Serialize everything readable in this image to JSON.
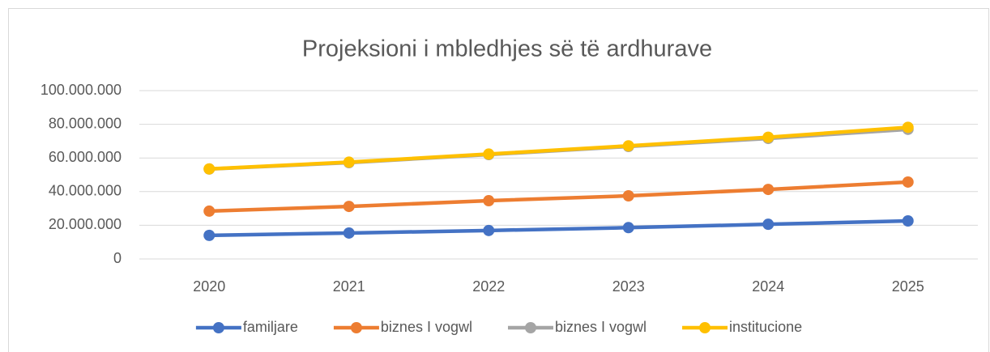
{
  "chart_data": {
    "type": "line",
    "title": "Projeksioni i mbledhjes së të ardhurave",
    "categories": [
      "2020",
      "2021",
      "2022",
      "2023",
      "2024",
      "2025"
    ],
    "series": [
      {
        "name": "familjare",
        "color": "#4472c4",
        "values": [
          14000000,
          15400000,
          16900000,
          18600000,
          20600000,
          22600000
        ]
      },
      {
        "name": "biznes I vogwl",
        "color": "#ed7d31",
        "values": [
          28400000,
          31200000,
          34600000,
          37500000,
          41300000,
          45700000
        ]
      },
      {
        "name": "biznes I vogwl",
        "color": "#a5a5a5",
        "values": [
          53400000,
          57200000,
          62000000,
          66800000,
          71600000,
          77000000
        ]
      },
      {
        "name": "institucione",
        "color": "#ffc000",
        "values": [
          53500000,
          57500000,
          62300000,
          67200000,
          72300000,
          78200000
        ]
      }
    ],
    "ylim": [
      0,
      100000000
    ],
    "yticks": [
      0,
      {
        "value": 20000000,
        "label": "20.000.000"
      },
      {
        "value": 40000000,
        "label": "40.000.000"
      },
      {
        "value": 60000000,
        "label": "60.000.000"
      },
      {
        "value": 80000000,
        "label": "80.000.000"
      },
      {
        "value": 100000000,
        "label": "100.000.000"
      }
    ],
    "grid": true,
    "legend": "bottom"
  }
}
